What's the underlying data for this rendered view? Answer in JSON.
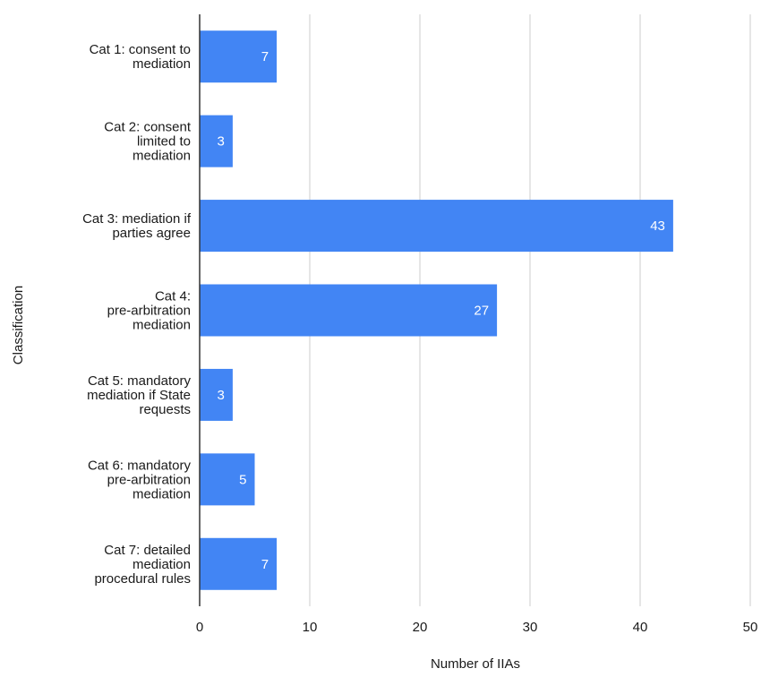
{
  "chart_data": {
    "type": "bar",
    "orientation": "horizontal",
    "categories": [
      [
        "Cat 1: consent to",
        "mediation"
      ],
      [
        "Cat 2: consent",
        "limited to",
        "mediation"
      ],
      [
        "Cat 3: mediation if",
        "parties agree"
      ],
      [
        "Cat 4:",
        "pre-arbitration",
        "mediation"
      ],
      [
        "Cat 5: mandatory",
        "mediation if State",
        "requests"
      ],
      [
        "Cat 6: mandatory",
        "pre-arbitration",
        "mediation"
      ],
      [
        "Cat 7: detailed",
        "mediation",
        "procedural rules"
      ]
    ],
    "values": [
      7,
      3,
      43,
      27,
      3,
      5,
      7
    ],
    "data_labels": [
      "7",
      "3",
      "43",
      "27",
      "3",
      "5",
      "7"
    ],
    "xlabel": "Number of IIAs",
    "ylabel": "Classification",
    "xlim": [
      0,
      50
    ],
    "x_ticks": [
      0,
      10,
      20,
      30,
      40,
      50
    ],
    "x_tick_labels": [
      "0",
      "10",
      "20",
      "30",
      "40",
      "50"
    ],
    "grid": true,
    "bar_color": "#4285f4",
    "label_color": "#ffffff"
  }
}
